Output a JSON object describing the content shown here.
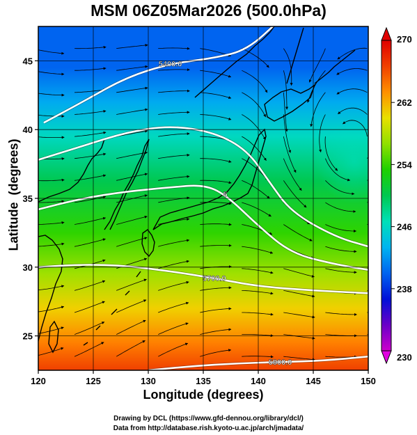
{
  "figure": {
    "title": "MSM 06Z05Mar2026 (500.0hPa)",
    "credit_line1": "Drawing by DCL (https://www.gfd-dennou.org/library/dcl/)",
    "credit_line2": "Data from http://database.rish.kyoto-u.ac.jp/arch/jmadata/"
  },
  "chart_data": {
    "type": "heatmap",
    "title": "MSM 06Z05Mar2026 (500.0hPa)",
    "xlabel": "Longitude (degrees)",
    "ylabel": "Latitude  (degrees)",
    "xlim": [
      120,
      150
    ],
    "ylim": [
      22.5,
      47.5
    ],
    "xticks": [
      120,
      125,
      130,
      135,
      140,
      145,
      150
    ],
    "yticks": [
      25,
      30,
      35,
      40,
      45
    ],
    "grid": true,
    "colorbar": {
      "min": 230,
      "max": 270,
      "ticks": [
        230,
        238,
        246,
        254,
        262,
        270
      ],
      "colors": [
        "#cc00cc",
        "#6a00c8",
        "#0010d8",
        "#0064f0",
        "#00b4f0",
        "#00e0b8",
        "#00c850",
        "#1ed000",
        "#90e000",
        "#e8e000",
        "#ff9000",
        "#f04000",
        "#e00000"
      ],
      "placement": "right"
    },
    "contours": [
      {
        "label": "5400.0",
        "points": [
          [
            120.5,
            40.5
          ],
          [
            124,
            42.0
          ],
          [
            128,
            43.8
          ],
          [
            132,
            44.8
          ],
          [
            136,
            45.2
          ],
          [
            139,
            45.8
          ],
          [
            142,
            48.0
          ]
        ]
      },
      {
        "label": "",
        "points": [
          [
            120,
            37.8
          ],
          [
            124,
            38.8
          ],
          [
            128,
            39.8
          ],
          [
            132,
            40.3
          ],
          [
            136,
            39.8
          ],
          [
            139,
            38.5
          ],
          [
            141,
            36.2
          ],
          [
            143,
            34.0
          ],
          [
            147,
            32.2
          ],
          [
            150,
            31.5
          ]
        ]
      },
      {
        "label": "5",
        "points": [
          [
            120,
            34.2
          ],
          [
            124,
            35.0
          ],
          [
            128,
            35.5
          ],
          [
            132,
            35.8
          ],
          [
            135,
            36.0
          ],
          [
            137,
            35.3
          ],
          [
            140,
            33.0
          ],
          [
            143,
            31.0
          ],
          [
            147,
            30.2
          ],
          [
            150,
            29.8
          ]
        ]
      },
      {
        "label": "5700.0",
        "points": [
          [
            120,
            30.0
          ],
          [
            124,
            30.2
          ],
          [
            128,
            30.1
          ],
          [
            132,
            29.7
          ],
          [
            136,
            29.2
          ],
          [
            140,
            28.6
          ],
          [
            145,
            28.3
          ],
          [
            150,
            28.1
          ]
        ]
      },
      {
        "label": "5800.0",
        "points": [
          [
            130,
            22.5
          ],
          [
            134,
            22.8
          ],
          [
            138,
            23.0
          ],
          [
            142,
            23.1
          ],
          [
            146,
            23.2
          ],
          [
            150,
            23.5
          ]
        ]
      }
    ],
    "low_center": [
      148.5,
      38.5
    ]
  }
}
